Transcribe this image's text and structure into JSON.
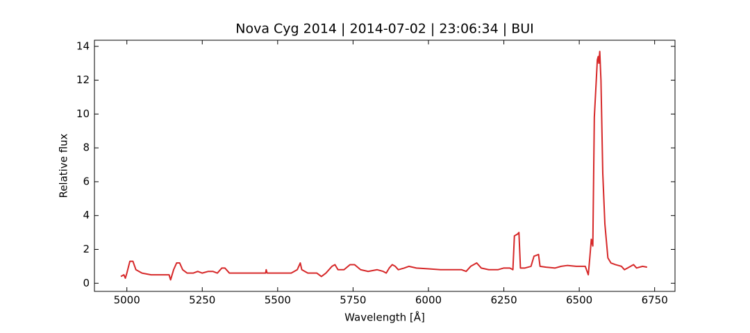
{
  "chart_data": {
    "type": "line",
    "title": "Nova Cyg 2014 | 2014-07-02 | 23:06:34 | BUI",
    "x_label": "Wavelength [Å]",
    "y_label": "Relative flux",
    "xlim": [
      4892.5,
      6817.5
    ],
    "ylim": [
      -0.48,
      14.36
    ],
    "xticks": [
      5000,
      5250,
      5500,
      5750,
      6000,
      6250,
      6500,
      6750
    ],
    "yticks": [
      0,
      2,
      4,
      6,
      8,
      10,
      12,
      14
    ],
    "grid": false,
    "series": [
      {
        "color": "#d62728",
        "x": [
          4980,
          4990,
          4995,
          5000,
          5010,
          5020,
          5030,
          5050,
          5080,
          5100,
          5120,
          5140,
          5145,
          5155,
          5165,
          5175,
          5185,
          5200,
          5220,
          5235,
          5250,
          5270,
          5285,
          5300,
          5315,
          5325,
          5340,
          5370,
          5400,
          5430,
          5460,
          5462,
          5465,
          5490,
          5520,
          5545,
          5565,
          5575,
          5580,
          5600,
          5630,
          5645,
          5660,
          5680,
          5690,
          5700,
          5720,
          5740,
          5755,
          5775,
          5800,
          5830,
          5850,
          5860,
          5870,
          5880,
          5890,
          5900,
          5920,
          5935,
          5960,
          6000,
          6040,
          6080,
          6110,
          6125,
          6140,
          6160,
          6175,
          6200,
          6230,
          6250,
          6270,
          6280,
          6285,
          6295,
          6300,
          6305,
          6320,
          6340,
          6350,
          6365,
          6370,
          6390,
          6420,
          6440,
          6460,
          6490,
          6520,
          6530,
          6535,
          6540,
          6545,
          6550,
          6555,
          6560,
          6563,
          6565,
          6568,
          6572,
          6578,
          6585,
          6595,
          6605,
          6620,
          6640,
          6650,
          6660,
          6680,
          6690,
          6710,
          6725
        ],
        "values": [
          0.4,
          0.5,
          0.3,
          0.6,
          1.3,
          1.3,
          0.8,
          0.6,
          0.5,
          0.5,
          0.5,
          0.5,
          0.2,
          0.8,
          1.2,
          1.2,
          0.8,
          0.6,
          0.6,
          0.7,
          0.6,
          0.7,
          0.7,
          0.6,
          0.9,
          0.9,
          0.6,
          0.6,
          0.6,
          0.6,
          0.6,
          0.8,
          0.6,
          0.6,
          0.6,
          0.6,
          0.8,
          1.2,
          0.8,
          0.6,
          0.6,
          0.4,
          0.6,
          1.0,
          1.1,
          0.8,
          0.8,
          1.1,
          1.1,
          0.8,
          0.7,
          0.8,
          0.7,
          0.6,
          0.9,
          1.1,
          1.0,
          0.8,
          0.9,
          1.0,
          0.9,
          0.85,
          0.8,
          0.8,
          0.8,
          0.7,
          1.0,
          1.2,
          0.9,
          0.8,
          0.8,
          0.9,
          0.9,
          0.8,
          2.8,
          2.9,
          3.0,
          0.9,
          0.9,
          1.0,
          1.6,
          1.7,
          1.0,
          0.95,
          0.9,
          1.0,
          1.05,
          1.0,
          1.0,
          0.5,
          1.5,
          2.6,
          2.2,
          9.8,
          11.5,
          13.2,
          13.4,
          13.0,
          13.7,
          12.0,
          6.5,
          3.5,
          1.5,
          1.2,
          1.1,
          1.0,
          0.8,
          0.9,
          1.1,
          0.9,
          1.0,
          0.95
        ]
      }
    ]
  }
}
